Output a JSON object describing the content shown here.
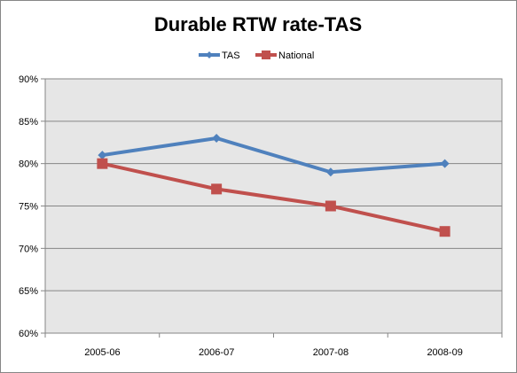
{
  "chart_data": {
    "type": "line",
    "title": "Durable RTW rate-TAS",
    "categories": [
      "2005-06",
      "2006-07",
      "2007-08",
      "2008-09"
    ],
    "series": [
      {
        "name": "TAS",
        "values": [
          81,
          83,
          79,
          80
        ],
        "color": "#4F81BD",
        "marker": "diamond"
      },
      {
        "name": "National",
        "values": [
          80,
          77,
          75,
          72
        ],
        "color": "#C0504D",
        "marker": "square"
      }
    ],
    "ylim": [
      60,
      90
    ],
    "yticks": [
      60,
      65,
      70,
      75,
      80,
      85,
      90
    ],
    "ytick_labels": [
      "60%",
      "65%",
      "70%",
      "75%",
      "80%",
      "85%",
      "90%"
    ],
    "grid": true,
    "legend_position": "top",
    "plot_background": "#E6E6E6"
  }
}
